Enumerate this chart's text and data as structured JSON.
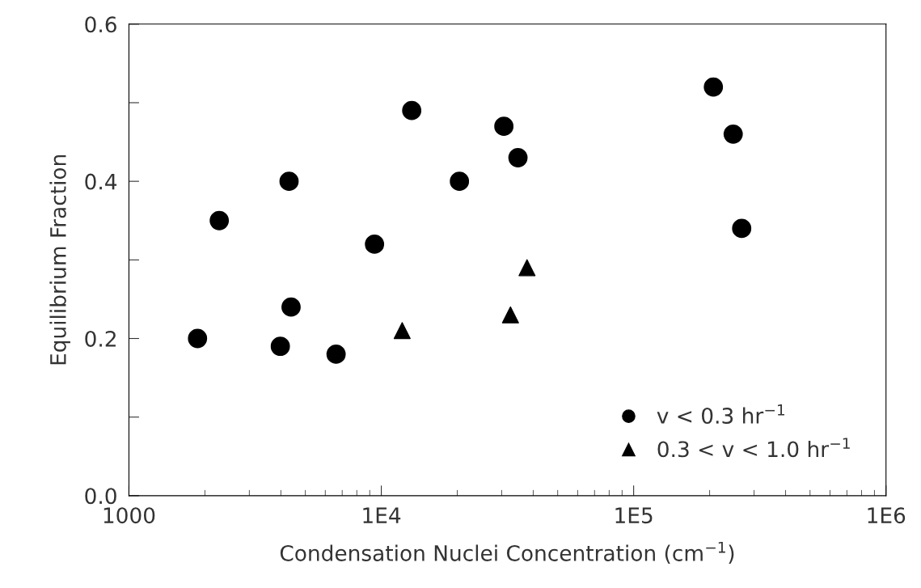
{
  "chart_data": {
    "type": "scatter",
    "xlabel": "Condensation Nuclei Concentration (cm$^{−1}$)",
    "ylabel": "Equilibrium Fraction",
    "log": "x",
    "xlim": [
      1000,
      1000000
    ],
    "xticks": [
      1000,
      {
        "value": 10000,
        "label": "1E4"
      },
      {
        "value": 100000,
        "label": "1E5"
      },
      {
        "value": 1000000,
        "label": "1E6"
      }
    ],
    "ylim": [
      0,
      0.6
    ],
    "yticks": [
      {
        "value": 0.0,
        "label": "0.0"
      },
      {
        "value": 0.1,
        "label": null
      },
      {
        "value": 0.2,
        "label": "0.2"
      },
      {
        "value": 0.3,
        "label": null
      },
      {
        "value": 0.4,
        "label": "0.4"
      },
      {
        "value": 0.5,
        "label": null
      },
      {
        "value": 0.6,
        "label": "0.6"
      }
    ],
    "grid": false,
    "legend": "bottom right",
    "series": [
      {
        "name": "v < 0.3 hr$^{−1}$",
        "color": "#000000",
        "marker": "circle",
        "x": [
          1870,
          2280,
          4310,
          4390,
          3980,
          6620,
          9400,
          13200,
          20400,
          30600,
          34800,
          207000,
          248000,
          268000
        ],
        "values": [
          0.2,
          0.35,
          0.4,
          0.24,
          0.19,
          0.18,
          0.32,
          0.49,
          0.4,
          0.47,
          0.43,
          0.52,
          0.46,
          0.34
        ]
      },
      {
        "name": "0.3 < v < 1.0 hr$^{−1}$",
        "color": "#000000",
        "marker": "triangle",
        "x": [
          12100,
          32500,
          37800
        ],
        "values": [
          0.21,
          0.23,
          0.29
        ]
      }
    ]
  }
}
